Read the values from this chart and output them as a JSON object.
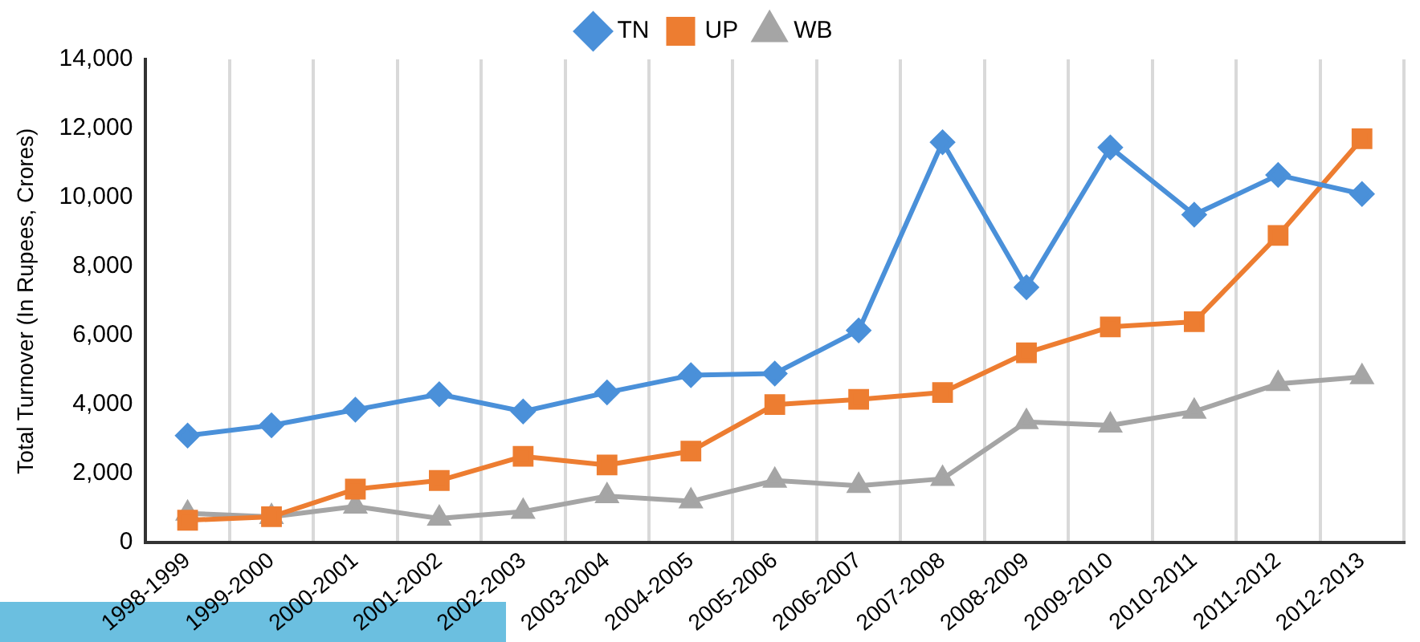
{
  "chart_data": {
    "type": "line",
    "ylabel": "Total Turnover (In Rupees, Crores)",
    "categories": [
      "1998-1999",
      "1999-2000",
      "2000-2001",
      "2001-2002",
      "2002-2003",
      "2003-2004",
      "2004-2005",
      "2005-2006",
      "2006-2007",
      "2007-2008",
      "2008-2009",
      "2009-2010",
      "2010-2011",
      "2011-2012",
      "2012-2013"
    ],
    "series": [
      {
        "name": "TN",
        "color": "#4a90d9",
        "marker": "diamond",
        "values": [
          3100,
          3400,
          3850,
          4300,
          3800,
          4350,
          4850,
          4900,
          6150,
          11600,
          7400,
          11450,
          9500,
          10650,
          10100
        ]
      },
      {
        "name": "UP",
        "color": "#ed7d31",
        "marker": "square",
        "values": [
          650,
          750,
          1550,
          1800,
          2500,
          2250,
          2650,
          4000,
          4150,
          4350,
          5500,
          6250,
          6400,
          8900,
          11700
        ]
      },
      {
        "name": "WB",
        "color": "#a5a5a5",
        "marker": "triangle",
        "values": [
          850,
          750,
          1050,
          700,
          900,
          1350,
          1200,
          1800,
          1650,
          1850,
          3500,
          3400,
          3800,
          4600,
          4800
        ]
      }
    ],
    "ylim": [
      0,
      14000
    ],
    "yticks": [
      0,
      {
        "value": 2000,
        "label": "2,000"
      },
      {
        "value": 4000,
        "label": "4,000"
      },
      {
        "value": 6000,
        "label": "6,000"
      },
      {
        "value": 8000,
        "label": "8,000"
      },
      {
        "value": 10000,
        "label": "10,000"
      },
      {
        "value": 12000,
        "label": "12,000"
      },
      {
        "value": 14000,
        "label": "14,000"
      }
    ],
    "grid": "x",
    "legend": "top"
  }
}
